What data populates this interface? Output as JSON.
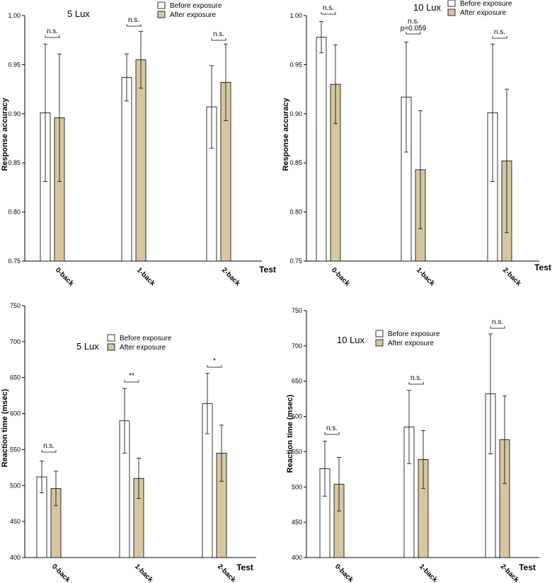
{
  "colors": {
    "before": "#ffffff",
    "after": "#d6c7a1",
    "stroke": "#000000"
  },
  "chart_data": [
    {
      "type": "bar",
      "title": "5 Lux",
      "xlabel": "Test",
      "ylabel": "Response accuracy",
      "ylim": [
        0.75,
        1.0
      ],
      "yticks": [
        "0.75",
        "0.80",
        "0.85",
        "0.90",
        "0.95",
        "1.00"
      ],
      "categories": [
        "0-back",
        "1-back",
        "2-back"
      ],
      "legend": [
        "Before exposure",
        "After exposure"
      ],
      "series": [
        {
          "name": "Before exposure",
          "values": [
            0.901,
            0.937,
            0.907
          ],
          "errors": [
            0.07,
            0.024,
            0.042
          ]
        },
        {
          "name": "After exposure",
          "values": [
            0.896,
            0.955,
            0.932
          ],
          "errors": [
            0.065,
            0.029,
            0.039
          ]
        }
      ],
      "annotations": [
        "n.s.",
        "n.s.",
        "n.s."
      ]
    },
    {
      "type": "bar",
      "title": "10 Lux",
      "xlabel": "Test",
      "ylabel": "Response accuracy",
      "ylim": [
        0.75,
        1.0
      ],
      "yticks": [
        "0.75",
        "0.80",
        "0.85",
        "0.90",
        "0.95",
        "1.00"
      ],
      "categories": [
        "0-back",
        "1-back",
        "2-back"
      ],
      "legend": [
        "Before exposure",
        "After exposure"
      ],
      "series": [
        {
          "name": "Before exposure",
          "values": [
            0.978,
            0.917,
            0.901
          ],
          "errors": [
            0.016,
            0.056,
            0.07
          ]
        },
        {
          "name": "After exposure",
          "values": [
            0.93,
            0.843,
            0.852
          ],
          "errors": [
            0.04,
            0.06,
            0.073
          ]
        }
      ],
      "annotations": [
        "n.s.",
        "n.s.",
        "n.s."
      ],
      "annotation_extra": [
        "",
        "p=0.059",
        ""
      ]
    },
    {
      "type": "bar",
      "title": "5 Lux",
      "xlabel": "Test",
      "ylabel": "Reaction time (msec)",
      "ylim": [
        400,
        750
      ],
      "yticks": [
        "400",
        "450",
        "500",
        "550",
        "600",
        "650",
        "700",
        "750"
      ],
      "categories": [
        "0-back",
        "1-back",
        "2-back"
      ],
      "legend": [
        "Before exposure",
        "After exposure"
      ],
      "series": [
        {
          "name": "Before exposure",
          "values": [
            512,
            590,
            614
          ],
          "errors": [
            22,
            45,
            42
          ]
        },
        {
          "name": "After exposure",
          "values": [
            496,
            510,
            545
          ],
          "errors": [
            24,
            28,
            39
          ]
        }
      ],
      "annotations": [
        "n.s.",
        "**",
        "*"
      ]
    },
    {
      "type": "bar",
      "title": "10 Lux",
      "xlabel": "Test",
      "ylabel": "Reaction time (msec)",
      "ylim": [
        400,
        750
      ],
      "yticks": [
        "400",
        "450",
        "500",
        "550",
        "600",
        "650",
        "700",
        "750"
      ],
      "categories": [
        "0-back",
        "1-back",
        "2-back"
      ],
      "legend": [
        "Before exposure",
        "After exposure"
      ],
      "series": [
        {
          "name": "Before exposure",
          "values": [
            526,
            585,
            632
          ],
          "errors": [
            39,
            52,
            85
          ]
        },
        {
          "name": "After exposure",
          "values": [
            504,
            539,
            567
          ],
          "errors": [
            38,
            41,
            62
          ]
        }
      ],
      "annotations": [
        "n.s.",
        "n.s.",
        "n.s."
      ]
    }
  ]
}
